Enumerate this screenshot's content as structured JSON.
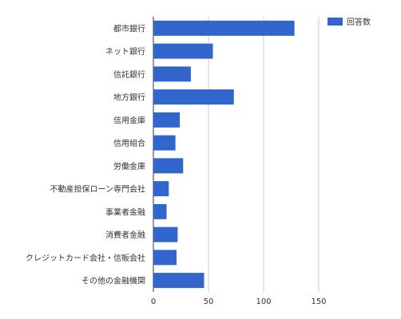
{
  "chart_data": {
    "type": "bar",
    "orientation": "horizontal",
    "categories": [
      "都市銀行",
      "ネット銀行",
      "信託銀行",
      "地方銀行",
      "信用金庫",
      "信用組合",
      "労働金庫",
      "不動産担保ローン専門会社",
      "事業者金融",
      "消費者金融",
      "クレジットカード会社・信販会社",
      "その他の金融機関"
    ],
    "series": [
      {
        "name": "回答数",
        "values": [
          128,
          54,
          34,
          73,
          24,
          20,
          27,
          14,
          12,
          22,
          21,
          46
        ]
      }
    ],
    "title": "",
    "xlabel": "",
    "ylabel": "",
    "xlim": [
      0,
      180
    ],
    "xticks": [
      0,
      50,
      100,
      150
    ],
    "grid": true,
    "legend_position": "top-right",
    "bar_color": "#3366cc",
    "grid_color": "#cccccc"
  }
}
